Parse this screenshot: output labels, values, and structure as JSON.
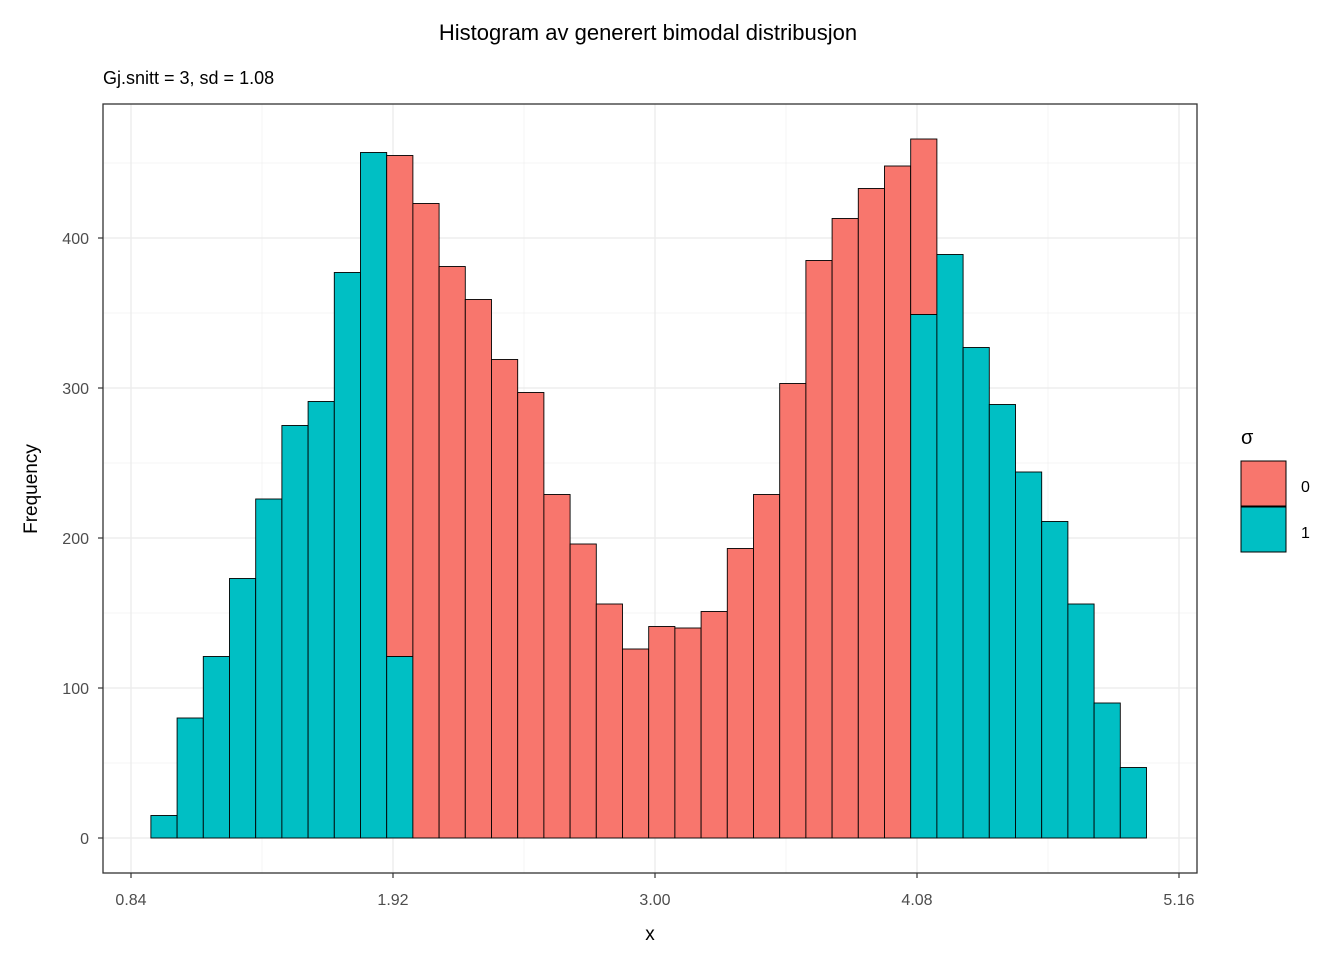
{
  "chart_data": {
    "type": "bar",
    "subtype": "stacked-histogram",
    "title": "Histogram av generert bimodal distribusjon",
    "subtitle": "Gj.snitt = 3, sd = 1.08",
    "xlabel": "x",
    "ylabel": "Frequency",
    "xlim": [
      0.72,
      5.23
    ],
    "ylim": [
      -23,
      490
    ],
    "x_ticks": [
      0.84,
      1.92,
      3.0,
      4.08,
      5.16
    ],
    "x_tick_labels": [
      "0.84",
      "1.92",
      "3.00",
      "4.08",
      "5.16"
    ],
    "y_ticks": [
      0,
      100,
      200,
      300,
      400
    ],
    "y_tick_labels": [
      "0",
      "100",
      "200",
      "300",
      "400"
    ],
    "grid": true,
    "bin_start": 0.922,
    "bin_width": 0.108,
    "legend": {
      "title": "σ",
      "placement": "right",
      "entries": [
        "0",
        "1"
      ]
    },
    "series": [
      {
        "name": "0",
        "color": "#F8766D",
        "values": [
          0,
          0,
          0,
          0,
          0,
          0,
          0,
          0,
          0,
          334,
          423,
          381,
          359,
          319,
          297,
          229,
          196,
          156,
          126,
          141,
          140,
          151,
          193,
          229,
          303,
          385,
          413,
          433,
          448,
          117,
          0,
          0,
          0,
          0,
          0,
          0,
          0,
          0
        ]
      },
      {
        "name": "1",
        "color": "#00BFC4",
        "values": [
          15,
          80,
          121,
          173,
          226,
          275,
          291,
          377,
          457,
          121,
          0,
          0,
          0,
          0,
          0,
          0,
          0,
          0,
          0,
          0,
          0,
          0,
          0,
          0,
          0,
          0,
          0,
          0,
          0,
          349,
          389,
          327,
          289,
          244,
          211,
          156,
          90,
          47
        ]
      }
    ]
  }
}
